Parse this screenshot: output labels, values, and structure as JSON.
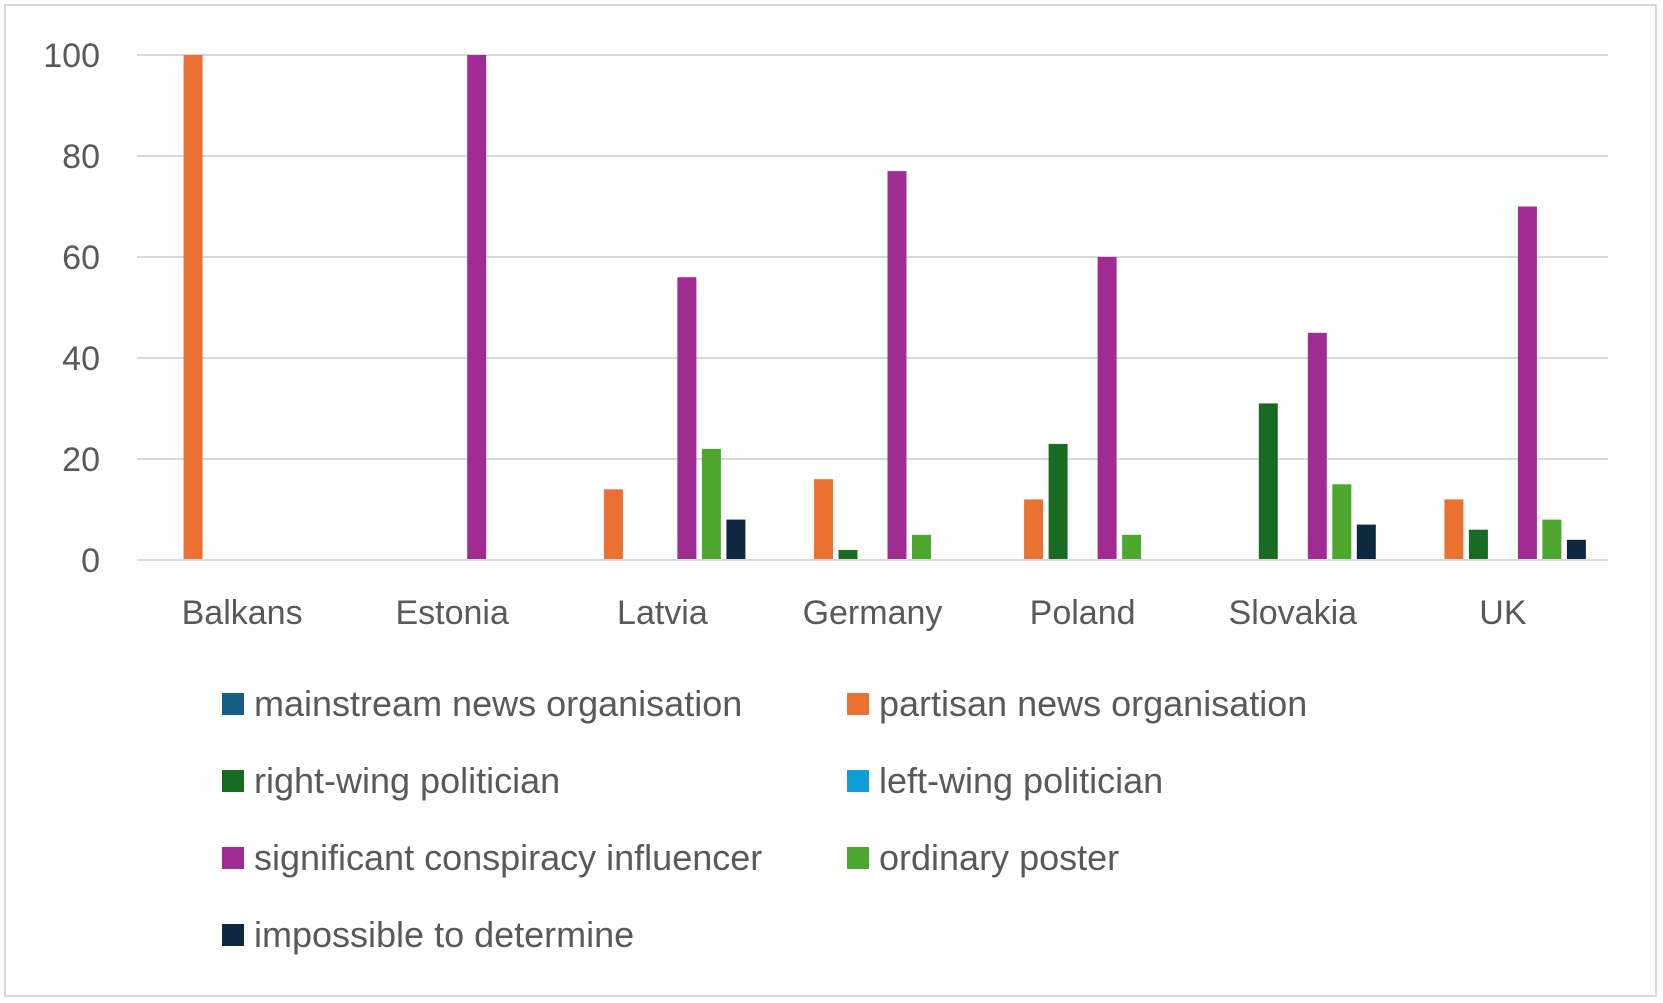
{
  "chart_data": {
    "type": "bar",
    "categories": [
      "Balkans",
      "Estonia",
      "Latvia",
      "Germany",
      "Poland",
      "Slovakia",
      "UK"
    ],
    "ylim": [
      0,
      100
    ],
    "yticks": [
      "0",
      "20",
      "40",
      "60",
      "80",
      "100"
    ],
    "title": "",
    "xlabel": "",
    "ylabel": "",
    "grid": true,
    "legend_position": "bottom",
    "series": [
      {
        "name": "mainstream news organisation",
        "color": "#156082",
        "values": [
          0,
          0,
          0,
          0,
          0,
          0,
          0
        ]
      },
      {
        "name": "partisan news organisation",
        "color": "#E97132",
        "values": [
          100,
          0,
          14,
          16,
          12,
          0,
          12
        ]
      },
      {
        "name": "right-wing politician",
        "color": "#196B24",
        "values": [
          0,
          0,
          0,
          2,
          23,
          31,
          6
        ]
      },
      {
        "name": "left-wing politician",
        "color": "#0F9ED5",
        "values": [
          0,
          0,
          0,
          0,
          0,
          0,
          0
        ]
      },
      {
        "name": "significant conspiracy influencer",
        "color": "#A02B93",
        "values": [
          0,
          100,
          56,
          77,
          60,
          45,
          70
        ]
      },
      {
        "name": "ordinary poster",
        "color": "#4EA72E",
        "values": [
          0,
          0,
          22,
          5,
          5,
          15,
          8
        ]
      },
      {
        "name": "impossible to determine",
        "color": "#0E2841",
        "values": [
          0,
          0,
          8,
          0,
          0,
          7,
          4
        ]
      }
    ]
  }
}
